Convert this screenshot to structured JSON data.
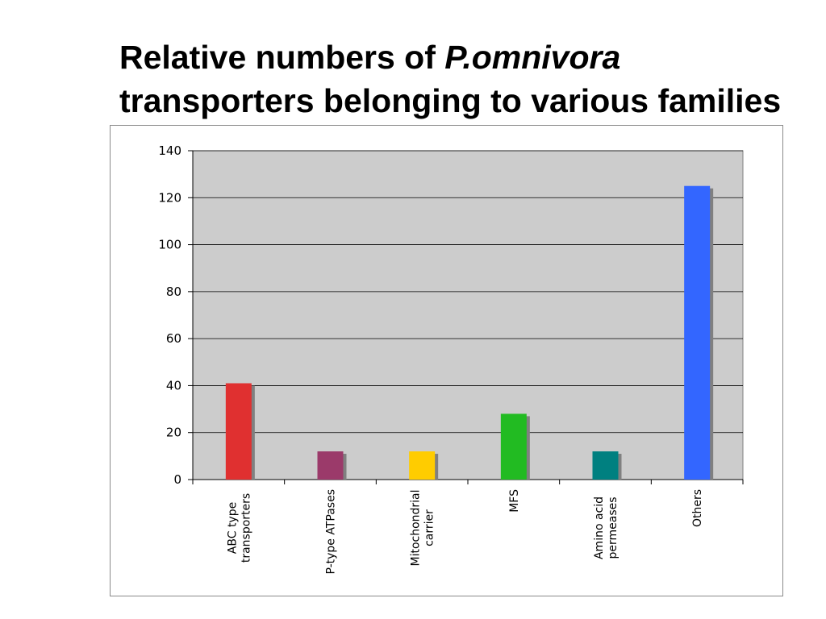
{
  "slide": {
    "title_line1_prefix": "Relative numbers of ",
    "title_line1_italic": "P.omnivora",
    "title_line2": "transporters belonging to various families"
  },
  "chart_data": {
    "type": "bar",
    "categories": [
      [
        "ABC type",
        "transporters"
      ],
      [
        "P-type ATPases"
      ],
      [
        "Mitochondrial",
        "carrier"
      ],
      [
        "MFS"
      ],
      [
        "Amino acid",
        "permeases"
      ],
      [
        "Others"
      ]
    ],
    "values": [
      41,
      12,
      12,
      28,
      12,
      125
    ],
    "colors": [
      "#e03030",
      "#9b3a6a",
      "#ffcc00",
      "#22bb22",
      "#008080",
      "#3366ff"
    ],
    "ylim": [
      0,
      140
    ],
    "yticks": [
      0,
      20,
      40,
      60,
      80,
      100,
      120,
      140
    ],
    "grid": true,
    "legend": "none",
    "plot_background": "#cccccc"
  }
}
